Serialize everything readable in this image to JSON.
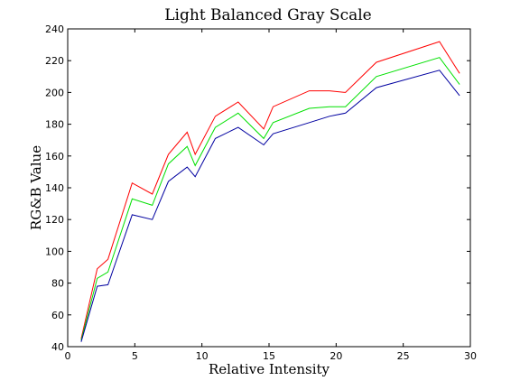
{
  "chart_data": {
    "type": "line",
    "title": "Light Balanced Gray Scale",
    "xlabel": "Relative Intensity",
    "ylabel": "RG&B Value",
    "xlim": [
      0,
      30
    ],
    "ylim": [
      40,
      240
    ],
    "xticks": [
      0,
      5,
      10,
      15,
      20,
      25,
      30
    ],
    "yticks": [
      40,
      60,
      80,
      100,
      120,
      140,
      160,
      180,
      200,
      220,
      240
    ],
    "grid": false,
    "legend": "none",
    "x": [
      1.0,
      2.2,
      3.0,
      4.8,
      6.3,
      7.5,
      8.9,
      9.5,
      11.0,
      12.7,
      14.6,
      15.3,
      18.0,
      19.5,
      20.7,
      23.0,
      27.7,
      29.2
    ],
    "series": [
      {
        "color": "#ff0000",
        "values": [
          45,
          89,
          95,
          143,
          136,
          161,
          175,
          161,
          185,
          194,
          177,
          191,
          201,
          201,
          200,
          219,
          232,
          212
        ]
      },
      {
        "color": "#00e000",
        "values": [
          44,
          83,
          87,
          133,
          129,
          155,
          166,
          154,
          178,
          187,
          171,
          181,
          190,
          191,
          191,
          210,
          222,
          205
        ]
      },
      {
        "color": "#0000a0",
        "values": [
          43,
          78,
          79,
          123,
          120,
          144,
          153,
          147,
          171,
          178,
          167,
          174,
          181,
          185,
          187,
          203,
          214,
          198
        ]
      }
    ]
  }
}
